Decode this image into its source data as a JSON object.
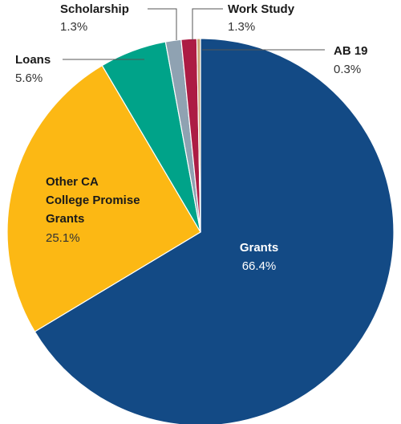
{
  "chart_data": {
    "type": "pie",
    "title": "",
    "slices": [
      {
        "label": "Grants",
        "value": 66.4,
        "display": "66.4%",
        "color": "#134a85"
      },
      {
        "label": "Other CA College Promise Grants",
        "label_lines": [
          "Other CA",
          "College Promise",
          "Grants"
        ],
        "value": 25.1,
        "display": "25.1%",
        "color": "#fcb814"
      },
      {
        "label": "Loans",
        "value": 5.6,
        "display": "5.6%",
        "color": "#00a389"
      },
      {
        "label": "Scholarship",
        "value": 1.3,
        "display": "1.3%",
        "color": "#8fa2b2"
      },
      {
        "label": "Work Study",
        "value": 1.3,
        "display": "1.3%",
        "color": "#ac1c44"
      },
      {
        "label": "AB 19",
        "value": 0.3,
        "display": "0.3%",
        "color": "#c9a675"
      }
    ]
  }
}
